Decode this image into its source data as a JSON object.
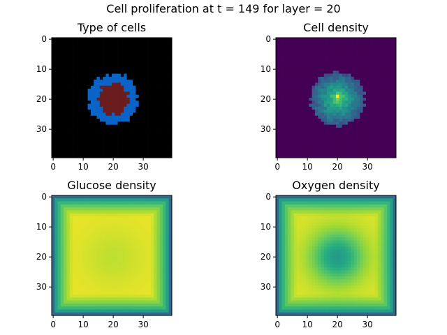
{
  "figure": {
    "suptitle": "Cell proliferation at t = 149 for layer = 20"
  },
  "chart_data": [
    {
      "type": "heatmap",
      "title": "Type of cells",
      "xlim": [
        0,
        39
      ],
      "ylim": [
        0,
        39
      ],
      "xticks": [
        "0",
        "10",
        "20",
        "30"
      ],
      "yticks": [
        "0",
        "10",
        "20",
        "30"
      ],
      "grid": false,
      "field": {
        "kind": "cell_type",
        "center": [
          20,
          20
        ],
        "outer_radius": 8.5,
        "inner_radius": 5.2,
        "colors": {
          "background": "#000000",
          "proliferating": "#0a64c8",
          "necrotic": "#6b1c1c"
        }
      }
    },
    {
      "type": "heatmap",
      "title": "Cell density",
      "xlim": [
        0,
        39
      ],
      "ylim": [
        0,
        39
      ],
      "xticks": [
        "0",
        "10",
        "20",
        "30"
      ],
      "yticks": [
        "0",
        "10",
        "20",
        "30"
      ],
      "grid": false,
      "colormap": "viridis",
      "field": {
        "kind": "blob",
        "center": [
          20,
          20
        ],
        "radius": 9,
        "core_radius": 3.5,
        "peak_cell": [
          20,
          19
        ],
        "peak_value": 1.0
      }
    },
    {
      "type": "heatmap",
      "title": "Glucose density",
      "xlim": [
        0,
        39
      ],
      "ylim": [
        0,
        39
      ],
      "xticks": [
        "0",
        "10",
        "20",
        "30"
      ],
      "yticks": [
        "0",
        "10",
        "20",
        "30"
      ],
      "grid": false,
      "colormap": "viridis",
      "field": {
        "kind": "nutrient",
        "center": [
          20,
          20
        ],
        "edge_min": 0.35,
        "plateau": 0.97,
        "dip_depth": 0.06,
        "dip_radius": 7
      }
    },
    {
      "type": "heatmap",
      "title": "Oxygen density",
      "xlim": [
        0,
        39
      ],
      "ylim": [
        0,
        39
      ],
      "xticks": [
        "0",
        "10",
        "20",
        "30"
      ],
      "yticks": [
        "0",
        "10",
        "20",
        "30"
      ],
      "grid": false,
      "colormap": "viridis",
      "field": {
        "kind": "nutrient",
        "center": [
          20,
          20
        ],
        "edge_min": 0.35,
        "plateau": 0.95,
        "dip_depth": 0.4,
        "dip_radius": 6
      }
    }
  ]
}
